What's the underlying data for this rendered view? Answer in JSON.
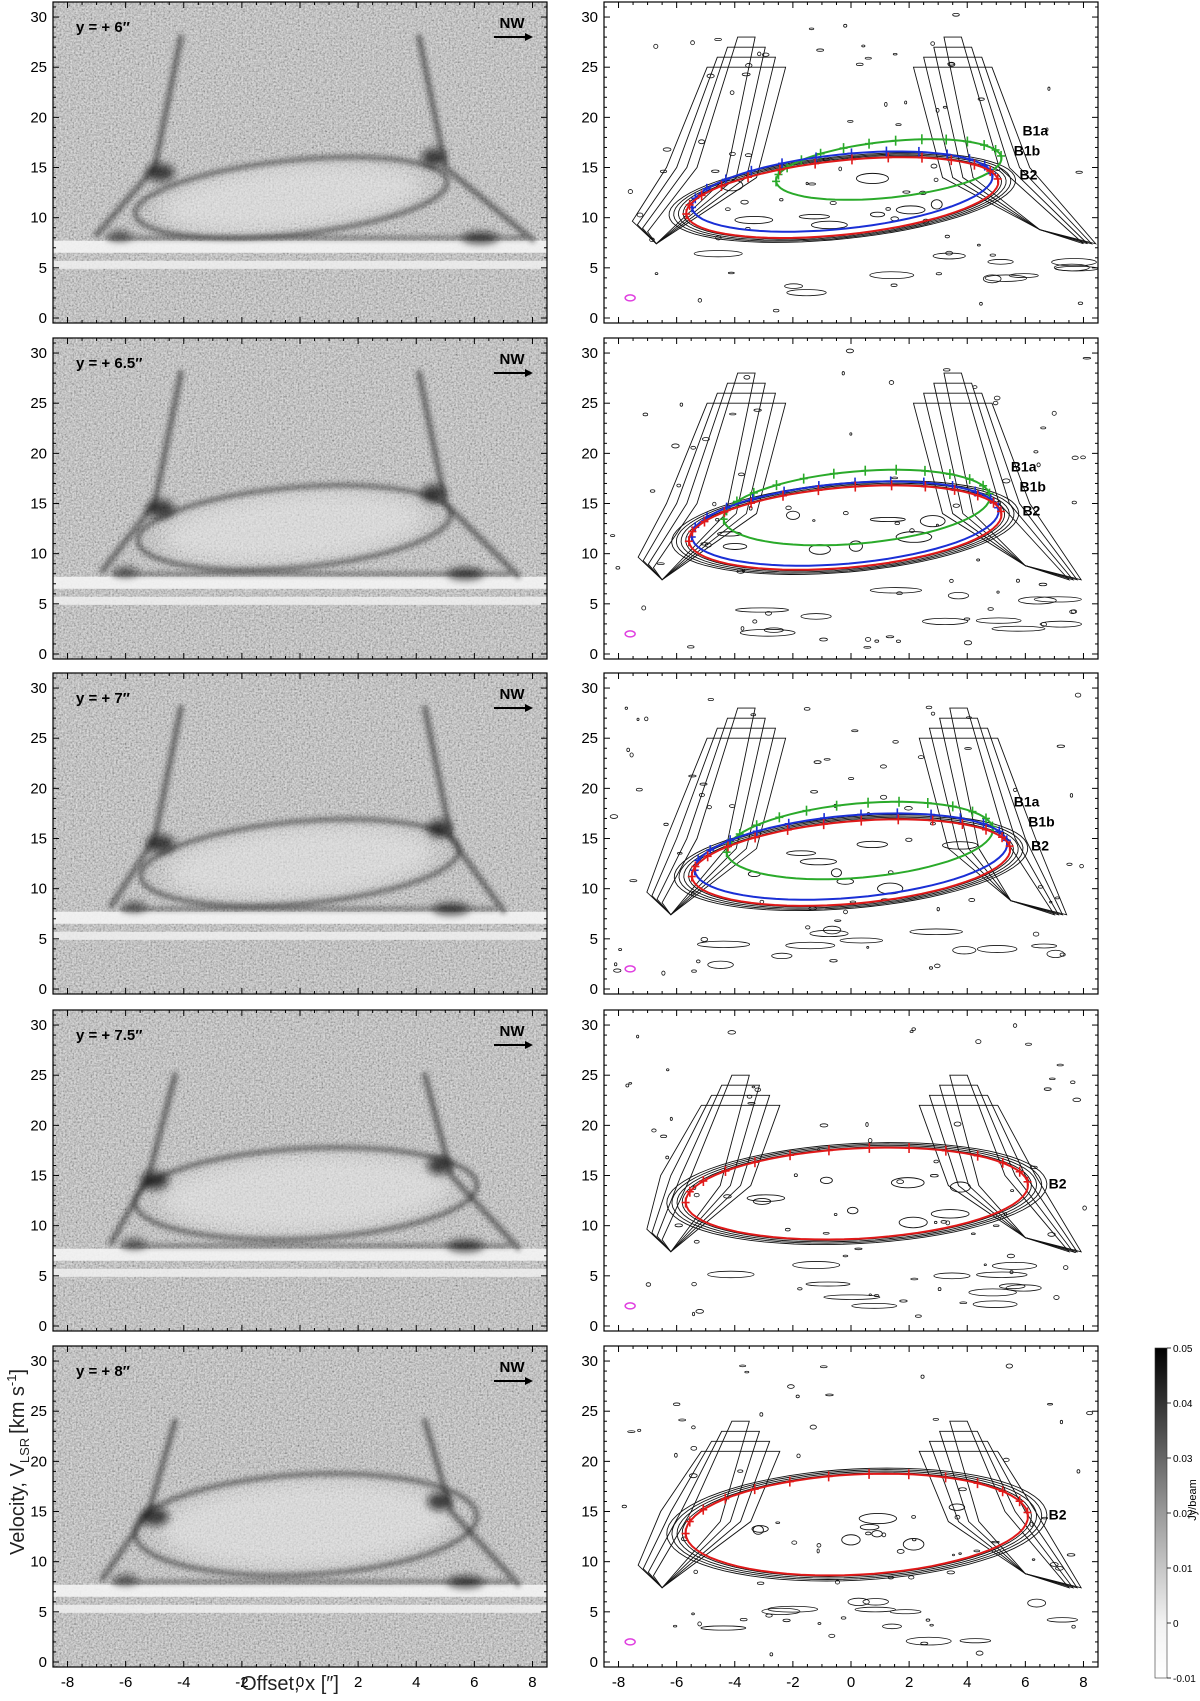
{
  "figure": {
    "xlabel": "Offset, x [″]",
    "ylabel_main": "Velocity, V",
    "ylabel_sub": "LSR",
    "ylabel_unit_pre": "[km s",
    "ylabel_unit_sup": "-1",
    "ylabel_unit_post": "]",
    "direction_label": "NW"
  },
  "colorbar": {
    "label": "Jy/beam",
    "ticks": [
      "0.05",
      "0.04",
      "0.03",
      "0.02",
      "0.01",
      "0",
      "-0.01"
    ],
    "range": [
      -0.01,
      0.05
    ],
    "colormap": "white-to-black"
  },
  "colors": {
    "B1a": "#2aaa2a",
    "B1b": "#1a2fd6",
    "B2": "#e01a1a",
    "beam": "#e040e0",
    "contour": "#111111"
  },
  "chart_data": {
    "type": "position-velocity diagrams",
    "xlim": [
      -8.5,
      8.5
    ],
    "ylim": [
      -0.5,
      31.5
    ],
    "x_ticks": [
      -8,
      -6,
      -4,
      -2,
      0,
      2,
      4,
      6,
      8
    ],
    "y_ticks": [
      0,
      5,
      10,
      15,
      20,
      25,
      30
    ],
    "x_tick_labels": [
      "-8",
      "-6",
      "-4",
      "-2",
      "0",
      "2",
      "4",
      "6",
      "8"
    ],
    "y_tick_labels": [
      "0",
      "5",
      "10",
      "15",
      "20",
      "25",
      "30"
    ],
    "panels": [
      {
        "label": "y = + 6″",
        "emission": {
          "left_x": -3.7,
          "right_x": 4.4,
          "top_v": 28,
          "ring_top_v": 17.5,
          "base_v": 8,
          "base_left_x": -7,
          "base_right_x": 8
        },
        "ellipses": [
          {
            "name": "B1a",
            "cx": 1.3,
            "cv": 14.8,
            "a": 3.9,
            "b": 2.8,
            "tilt": 6,
            "labeled": true
          },
          {
            "name": "B1b",
            "cx": -0.3,
            "cv": 12.6,
            "a": 5.2,
            "b": 3.7,
            "tilt": 6,
            "labeled": true
          },
          {
            "name": "B2",
            "cx": -0.3,
            "cv": 12.0,
            "a": 5.4,
            "b": 3.7,
            "tilt": 6,
            "labeled": true
          }
        ]
      },
      {
        "label": "y = + 6.5″",
        "emission": {
          "left_x": -3.7,
          "right_x": 4.4,
          "top_v": 28,
          "ring_top_v": 17.5,
          "base_v": 8,
          "base_left_x": -6.8,
          "base_right_x": 7.5
        },
        "ellipses": [
          {
            "name": "B1a",
            "cx": 0.2,
            "cv": 14.6,
            "a": 4.6,
            "b": 3.6,
            "tilt": 5,
            "labeled": true
          },
          {
            "name": "B1b",
            "cx": -0.2,
            "cv": 13.0,
            "a": 5.3,
            "b": 4.0,
            "tilt": 5,
            "labeled": true
          },
          {
            "name": "B2",
            "cx": -0.2,
            "cv": 12.6,
            "a": 5.4,
            "b": 4.0,
            "tilt": 5,
            "labeled": true
          }
        ]
      },
      {
        "label": "y = + 7″",
        "emission": {
          "left_x": -3.7,
          "right_x": 4.6,
          "top_v": 28,
          "ring_top_v": 17.5,
          "base_v": 8,
          "base_left_x": -6.5,
          "base_right_x": 7
        },
        "ellipses": [
          {
            "name": "B1a",
            "cx": 0.3,
            "cv": 14.8,
            "a": 4.6,
            "b": 3.7,
            "tilt": 5,
            "labeled": true
          },
          {
            "name": "B1b",
            "cx": 0.0,
            "cv": 13.2,
            "a": 5.4,
            "b": 4.1,
            "tilt": 5,
            "labeled": true
          },
          {
            "name": "B2",
            "cx": 0.0,
            "cv": 12.6,
            "a": 5.5,
            "b": 4.1,
            "tilt": 5,
            "labeled": true
          }
        ]
      },
      {
        "label": "y = + 7.5″",
        "emission": {
          "left_x": -3.9,
          "right_x": 4.6,
          "top_v": 25,
          "ring_top_v": 17.5,
          "base_v": 8,
          "base_left_x": -6.5,
          "base_right_x": 7.5
        },
        "ellipses": [
          {
            "name": "B2",
            "cx": 0.2,
            "cv": 13.2,
            "a": 5.9,
            "b": 4.5,
            "tilt": 3,
            "labeled": true
          }
        ]
      },
      {
        "label": "y = + 8″",
        "emission": {
          "left_x": -3.9,
          "right_x": 4.6,
          "top_v": 24,
          "ring_top_v": 18,
          "base_v": 8,
          "base_left_x": -6.8,
          "base_right_x": 7.5
        },
        "ellipses": [
          {
            "name": "B2",
            "cx": 0.2,
            "cv": 13.7,
            "a": 5.9,
            "b": 5.0,
            "tilt": 3,
            "labeled": true
          }
        ]
      }
    ]
  }
}
